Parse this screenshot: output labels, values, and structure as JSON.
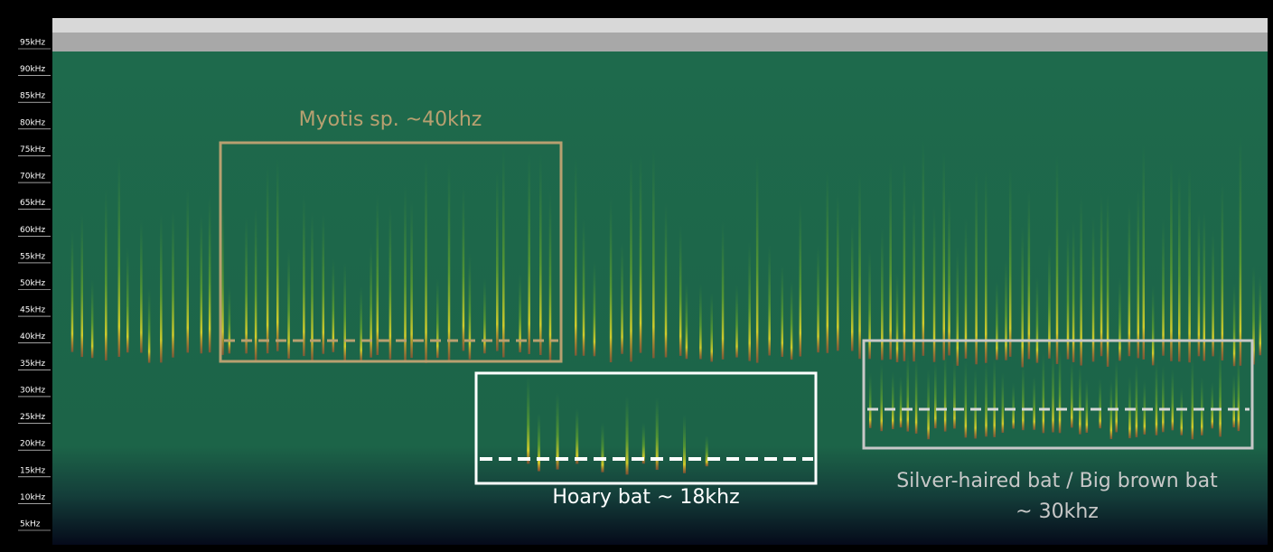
{
  "axis": {
    "labels": [
      "95kHz",
      "90kHz",
      "85kHz",
      "80kHz",
      "75kHz",
      "70kHz",
      "65kHz",
      "60kHz",
      "55kHz",
      "50kHz",
      "45kHz",
      "40kHz",
      "35kHz",
      "30kHz",
      "25kHz",
      "20kHz",
      "15kHz",
      "10kHz",
      "5kHz"
    ]
  },
  "annotations": {
    "myotis": "Myotis sp. ~40khz",
    "hoary": "Hoary bat ~ 18khz",
    "silver": [
      "Silver-haired bat / Big brown bat",
      "~ 30khz"
    ]
  }
}
